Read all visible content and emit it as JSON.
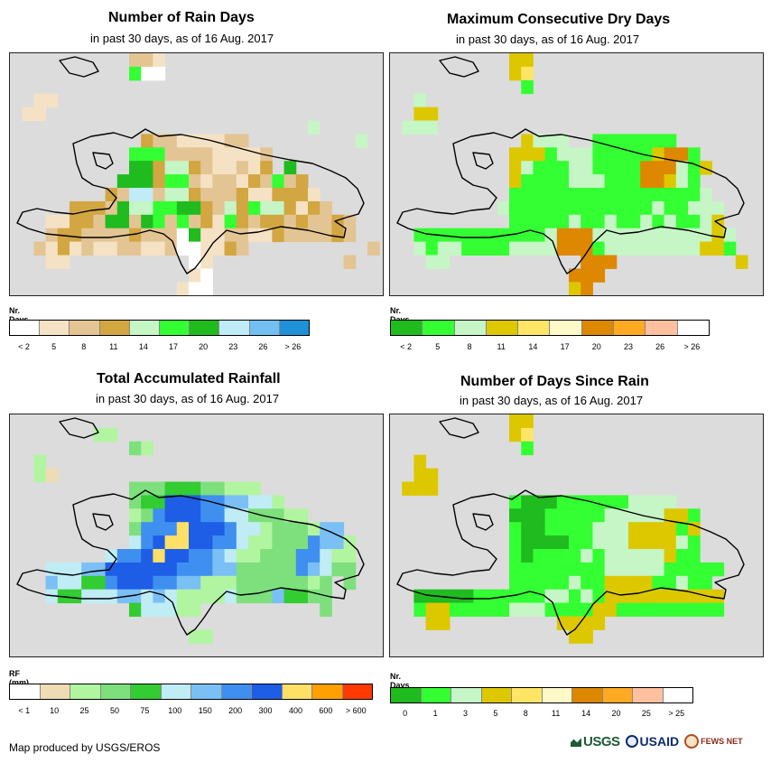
{
  "panels": [
    {
      "title": "Number of Rain Days",
      "subtitle": "in past 30 days, as of 16 Aug. 2017",
      "legend_title": "Nr. Days",
      "legend_labels": [
        "< 2",
        "5",
        "8",
        "11",
        "14",
        "17",
        "20",
        "23",
        "26",
        "> 26"
      ],
      "legend_colors": [
        "#ffffff",
        "#f5e2c4",
        "#e3c594",
        "#d2a640",
        "#c6f5c6",
        "#33ff33",
        "#1fbb1f",
        "#c0ecf8",
        "#73bff2",
        "#1e90d8"
      ]
    },
    {
      "title": "Maximum Consecutive Dry Days",
      "subtitle": "in past 30 days, as of 16 Aug. 2017",
      "legend_title": "Nr. Days",
      "legend_labels": [
        "< 2",
        "5",
        "8",
        "11",
        "14",
        "17",
        "20",
        "23",
        "26",
        "> 26"
      ],
      "legend_colors": [
        "#1fbb1f",
        "#33ff33",
        "#c6f5c6",
        "#ddc800",
        "#ffe566",
        "#fff8c8",
        "#dd8800",
        "#ffaa22",
        "#ffc0a0",
        "#ffffff"
      ]
    },
    {
      "title": "Total Accumulated Rainfall",
      "subtitle": "in past 30 days, as of 16 Aug. 2017",
      "legend_title": "RF (mm)",
      "legend_labels": [
        "< 1",
        "10",
        "25",
        "50",
        "75",
        "100",
        "150",
        "200",
        "300",
        "400",
        "600",
        "> 600"
      ],
      "legend_colors": [
        "#ffffff",
        "#f0dcb4",
        "#b2f5a0",
        "#7de07d",
        "#33cc33",
        "#bfecf5",
        "#7ac0f5",
        "#3f8ff0",
        "#1e5ee6",
        "#ffe066",
        "#ffa000",
        "#ff3a00"
      ]
    },
    {
      "title": "Number of Days Since Rain",
      "subtitle": "in past 30 days, as of 16 Aug. 2017",
      "legend_title": "Nr. Days",
      "legend_labels": [
        "0",
        "1",
        "3",
        "5",
        "8",
        "11",
        "14",
        "20",
        "25",
        "> 25"
      ],
      "legend_colors": [
        "#1fbb1f",
        "#33ff33",
        "#c6f5c6",
        "#ddc800",
        "#ffe566",
        "#fff8c8",
        "#dd8800",
        "#ffaa22",
        "#ffc0a0",
        "#ffffff"
      ]
    }
  ],
  "credit": "Map produced by USGS/EROS",
  "logos": {
    "usgs": "USGS",
    "usaid": "USAID",
    "fews": "FEWS NET"
  },
  "grids": [
    [
      "..........CCB...................",
      "..........FAA...................",
      "................................",
      "..BB............................",
      ".BB.............................",
      ".........................E......",
      "...........DCCBBBBCC.........E..",
      "..........FFFCCCCBBBBC..........",
      "..........GGDEEDCBBCBD.G........",
      ".........GGGDFFCBCCBDCFCD.......",
      "........DCHHCEEDCCCDBBDDDB......",
      ".....DDDCGEEFFGGDCEDFEEDBDC.....",
      "...BBDDCGGCGFCFCDBFDCDDCDCCDC...",
      "...CDDCCCCDCCCAGBBCCBBDCCCCDC...",
      "..CBDBCBBCCBBCAABBDC..........C.",
      "...BB..........AB...........C...",
      "...............BA...............",
      "..............BAA..............."
    ],
    [
      "..........DD....................",
      "..........DE....................",
      "...........B....................",
      "..C.............................",
      "..DD............................",
      ".CCC............................",
      "...........DCCC..BBBBBBB.........",
      "..........DDDBCCCBBBBBDGGB......",
      "..........DCBBBCCBBBBGGGCBD.....",
      "..........DBBBBCCCBBBGGDCB......",
      "..........BBBBBBBBBBBBBBBBC.....",
      ".........CBBBBBBBBBBBBCBBCCC....",
      "..........BBBBBCBBCBBCBCBBCD....",
      "..BBBBBBBBBBBCGGGCCCCCCCCCCDC...",
      "..CBCCBBBBCCCCGGGBCCCCCCCCDDB..",
      "...CC...........GGG..........D..",
      "...............GGG..............",
      "...............DG..............."
    ],
    [
      "................................",
      ".......CC.......................",
      "..........DC....................",
      "..C.............................",
      "..CB............................",
      "..........DDDEEEDDCCC...........",
      "..........DEEIIIHHGGFFC.........",
      "..........CDHIIIHHFFDDDCC.......",
      "..........DHHHJIIIHFFCDDDCGG....",
      "..........FHIJJIIHHFCCDDDHGGC...",
      "........FHHIJIIHHGFCCDDDHHFCC...",
      "...FFFGGIIIIIIHHHGGDDDDDHGFDD...",
      "...GFFEEHIIIHHGGCCCDDDDDDCD.D...",
      "...FEEFFFGGFGFCCCCFDDDGEEDD.....",
      "..........EFFFCC..........D.....",
      "................................",
      "...............CC...............",
      "................................"
    ],
    [
      "..........DD....................",
      "..........DE....................",
      "...........B....................",
      "..D.............................",
      "..DD............................",
      ".DDD............................",
      "..........BAAABBBBBBCCCC.........",
      "..........AAABBBBBCCCCCDDB......",
      "..........BAABBBBCCCDDDDBD......",
      "..........BAAAABBCCCDDDDCB......",
      "..........BABBBBCBCCCCCDBB......",
      "..........BBBBBBBBCCCCCBBBBB....",
      "..........BBBBBCBBDDDDBBCBB.....",
      "..AAAAABBBBBBCCBCBDDDDDDDDDD...",
      "..BDDBBBBBCCCBBBBDDBBBBBBBBB...",
      "...DD.........DDDD..............",
      "...............DD...............",
      "................................"
    ]
  ]
}
